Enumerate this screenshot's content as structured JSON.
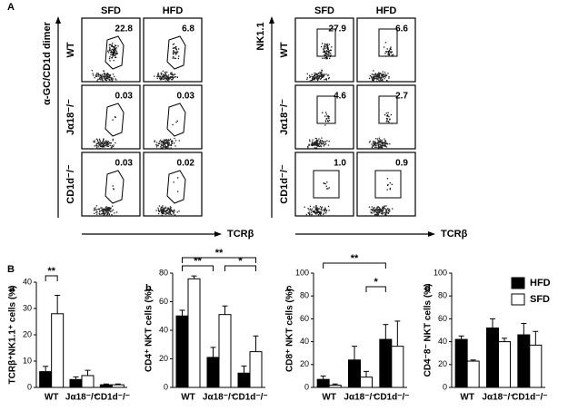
{
  "figure": {
    "panel_a_label": "A",
    "panel_b_label": "B"
  },
  "flow": [
    {
      "y_label": "α-GC/CD1d dimer",
      "x_label": "TCRβ",
      "columns": [
        "SFD",
        "HFD"
      ],
      "rows": [
        "WT",
        "Jα18⁻/⁻",
        "CD1d⁻/⁻"
      ],
      "percentages": [
        [
          "22.8",
          "6.8"
        ],
        [
          "0.03",
          "0.03"
        ],
        [
          "0.03",
          "0.02"
        ]
      ]
    },
    {
      "y_label": "NK1.1",
      "x_label": "TCRβ",
      "columns": [
        "SFD",
        "HFD"
      ],
      "rows": [
        "WT",
        "Jα18⁻/⁻",
        "CD1d⁻/⁻"
      ],
      "percentages": [
        [
          "27.9",
          "6.6"
        ],
        [
          "4.6",
          "2.7"
        ],
        [
          "1.0",
          "0.9"
        ]
      ]
    }
  ],
  "chart_data": [
    {
      "type": "bar",
      "panel": "a",
      "ylabel": "TCRβ⁺NK1.1⁺ cells (%)",
      "categories": [
        "WT",
        "Jα18⁻/⁻",
        "CD1d⁻/⁻"
      ],
      "ylim": [
        0,
        40
      ],
      "yticks": [
        0,
        10,
        20,
        30,
        40
      ],
      "series": [
        {
          "color": "#000000",
          "values": [
            6,
            3,
            1
          ],
          "errors": [
            2,
            1,
            0.3
          ]
        },
        {
          "color": "#ffffff",
          "values": [
            28,
            4.5,
            1
          ],
          "errors": [
            7,
            2,
            0.3
          ]
        }
      ],
      "annotations": [
        "**"
      ]
    },
    {
      "type": "bar",
      "panel": "b",
      "ylabel": "CD4⁺ NKT cells (%)",
      "categories": [
        "WT",
        "Jα18⁻/⁻",
        "CD1d⁻/⁻"
      ],
      "ylim": [
        0,
        80
      ],
      "yticks": [
        0,
        20,
        40,
        60,
        80
      ],
      "series": [
        {
          "color": "#000000",
          "values": [
            50,
            21,
            10
          ],
          "errors": [
            4,
            7,
            5
          ]
        },
        {
          "color": "#ffffff",
          "values": [
            76,
            51,
            25
          ],
          "errors": [
            2,
            6,
            11
          ]
        }
      ],
      "annotations": [
        "**",
        "**",
        "*"
      ]
    },
    {
      "type": "bar",
      "panel": "c",
      "ylabel": "CD8⁺ NKT cells (%)",
      "categories": [
        "WT",
        "Jα18⁻/⁻",
        "CD1d⁻/⁻"
      ],
      "ylim": [
        0,
        100
      ],
      "yticks": [
        0,
        20,
        40,
        60,
        80,
        100
      ],
      "series": [
        {
          "color": "#000000",
          "values": [
            7,
            24,
            42
          ],
          "errors": [
            3,
            12,
            13
          ]
        },
        {
          "color": "#ffffff",
          "values": [
            2,
            9,
            36
          ],
          "errors": [
            1,
            5,
            22
          ]
        }
      ],
      "annotations": [
        "**",
        "*"
      ]
    },
    {
      "type": "bar",
      "panel": "d",
      "ylabel": "CD4⁻8⁻ NKT cells (%)",
      "categories": [
        "WT",
        "Jα18⁻/⁻",
        "CD1d⁻/⁻"
      ],
      "ylim": [
        0,
        100
      ],
      "yticks": [
        0,
        20,
        40,
        60,
        80,
        100
      ],
      "series": [
        {
          "name": "HFD",
          "color": "#000000",
          "values": [
            42,
            52,
            46
          ],
          "errors": [
            3,
            8,
            10
          ]
        },
        {
          "name": "SFD",
          "color": "#ffffff",
          "values": [
            23,
            40,
            37
          ],
          "errors": [
            1,
            3,
            12
          ]
        }
      ],
      "legend": "top-right"
    }
  ]
}
